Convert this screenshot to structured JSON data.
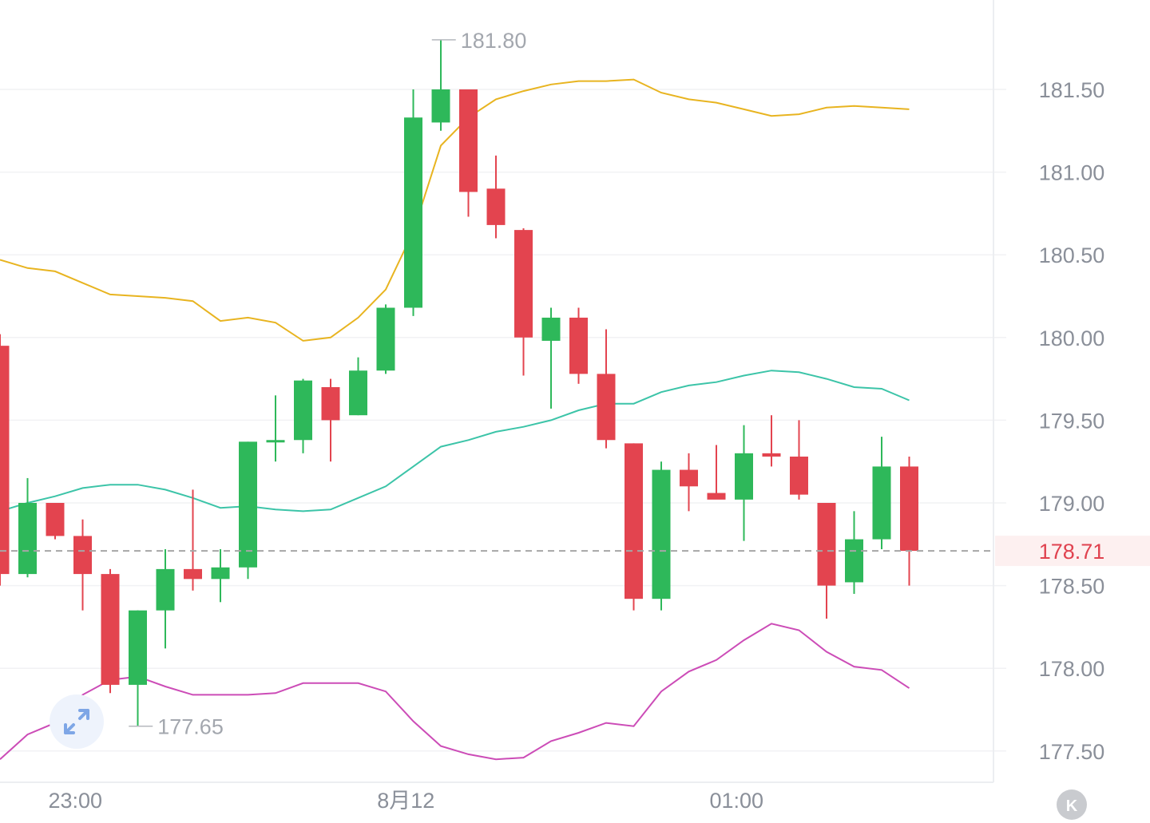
{
  "chart_data": {
    "type": "candlestick",
    "y_axis": {
      "ticks": [
        "181.50",
        "181.00",
        "180.50",
        "180.00",
        "179.50",
        "179.00",
        "178.50",
        "178.00",
        "177.50"
      ],
      "tick_values": [
        181.5,
        181.0,
        180.5,
        180.0,
        179.5,
        179.0,
        178.5,
        178.0,
        177.5
      ],
      "range": [
        177.3,
        182.05
      ],
      "position": "right"
    },
    "x_axis": {
      "labels": [
        {
          "text": "23:00",
          "index": 2.5
        },
        {
          "text": "8月12",
          "index": 14.5
        },
        {
          "text": "01:00",
          "index": 26.5
        }
      ]
    },
    "grid": true,
    "current_price": {
      "value": 178.71,
      "label": "178.71",
      "line": "dashed"
    },
    "high_annotation": {
      "value": 181.8,
      "label": "181.80",
      "index": 15.5
    },
    "low_annotation": {
      "value": 177.65,
      "label": "177.65",
      "index": 4.5
    },
    "candles": [
      {
        "open": 179.95,
        "high": 180.02,
        "low": 178.5,
        "close": 178.57
      },
      {
        "open": 178.57,
        "high": 179.15,
        "low": 178.55,
        "close": 179.0
      },
      {
        "open": 179.0,
        "high": 179.0,
        "low": 178.78,
        "close": 178.8
      },
      {
        "open": 178.8,
        "high": 178.9,
        "low": 178.35,
        "close": 178.57
      },
      {
        "open": 178.57,
        "high": 178.6,
        "low": 177.85,
        "close": 177.9
      },
      {
        "open": 177.9,
        "high": 178.35,
        "low": 177.65,
        "close": 178.35
      },
      {
        "open": 178.35,
        "high": 178.72,
        "low": 178.12,
        "close": 178.6
      },
      {
        "open": 178.6,
        "high": 179.08,
        "low": 178.47,
        "close": 178.54
      },
      {
        "open": 178.54,
        "high": 178.72,
        "low": 178.4,
        "close": 178.61
      },
      {
        "open": 178.61,
        "high": 179.37,
        "low": 178.54,
        "close": 179.37
      },
      {
        "open": 179.37,
        "high": 179.65,
        "low": 179.25,
        "close": 179.38
      },
      {
        "open": 179.38,
        "high": 179.75,
        "low": 179.3,
        "close": 179.74
      },
      {
        "open": 179.7,
        "high": 179.75,
        "low": 179.25,
        "close": 179.5
      },
      {
        "open": 179.53,
        "high": 179.88,
        "low": 179.53,
        "close": 179.8
      },
      {
        "open": 179.8,
        "high": 180.2,
        "low": 179.78,
        "close": 180.18
      },
      {
        "open": 180.18,
        "high": 181.5,
        "low": 180.13,
        "close": 181.33
      },
      {
        "open": 181.3,
        "high": 181.8,
        "low": 181.25,
        "close": 181.5
      },
      {
        "open": 181.5,
        "high": 181.5,
        "low": 180.73,
        "close": 180.88
      },
      {
        "open": 180.9,
        "high": 181.1,
        "low": 180.6,
        "close": 180.68
      },
      {
        "open": 180.65,
        "high": 180.66,
        "low": 179.77,
        "close": 180.0
      },
      {
        "open": 179.98,
        "high": 180.18,
        "low": 179.57,
        "close": 180.12
      },
      {
        "open": 180.12,
        "high": 180.18,
        "low": 179.72,
        "close": 179.78
      },
      {
        "open": 179.78,
        "high": 180.05,
        "low": 179.33,
        "close": 179.38
      },
      {
        "open": 179.36,
        "high": 179.36,
        "low": 178.35,
        "close": 178.42
      },
      {
        "open": 178.42,
        "high": 179.25,
        "low": 178.35,
        "close": 179.2
      },
      {
        "open": 179.2,
        "high": 179.3,
        "low": 178.95,
        "close": 179.1
      },
      {
        "open": 179.06,
        "high": 179.35,
        "low": 179.05,
        "close": 179.02
      },
      {
        "open": 179.02,
        "high": 179.47,
        "low": 178.77,
        "close": 179.3
      },
      {
        "open": 179.3,
        "high": 179.53,
        "low": 179.22,
        "close": 179.28
      },
      {
        "open": 179.28,
        "high": 179.5,
        "low": 179.02,
        "close": 179.05
      },
      {
        "open": 179.0,
        "high": 179.0,
        "low": 178.3,
        "close": 178.5
      },
      {
        "open": 178.52,
        "high": 178.95,
        "low": 178.45,
        "close": 178.78
      },
      {
        "open": 178.78,
        "high": 179.4,
        "low": 178.72,
        "close": 179.22
      },
      {
        "open": 179.22,
        "high": 179.28,
        "low": 178.5,
        "close": 178.71
      }
    ],
    "bands": {
      "upper": [
        180.47,
        180.42,
        180.4,
        180.33,
        180.26,
        180.25,
        180.24,
        180.22,
        180.1,
        180.12,
        180.09,
        179.98,
        180.0,
        180.12,
        180.29,
        180.64,
        181.16,
        181.33,
        181.44,
        181.49,
        181.53,
        181.55,
        181.55,
        181.56,
        181.48,
        181.44,
        181.42,
        181.38,
        181.34,
        181.35,
        181.39,
        181.4,
        181.39,
        181.38
      ],
      "middle": [
        178.95,
        179.0,
        179.04,
        179.09,
        179.11,
        179.11,
        179.08,
        179.03,
        178.97,
        178.98,
        178.96,
        178.95,
        178.96,
        179.03,
        179.1,
        179.22,
        179.34,
        179.38,
        179.43,
        179.46,
        179.5,
        179.56,
        179.6,
        179.6,
        179.67,
        179.71,
        179.73,
        179.77,
        179.8,
        179.79,
        179.75,
        179.7,
        179.69,
        179.62
      ],
      "lower": [
        177.45,
        177.6,
        177.67,
        177.84,
        177.93,
        177.95,
        177.89,
        177.84,
        177.84,
        177.84,
        177.85,
        177.91,
        177.91,
        177.91,
        177.86,
        177.68,
        177.53,
        177.48,
        177.45,
        177.46,
        177.56,
        177.61,
        177.67,
        177.65,
        177.86,
        177.98,
        178.05,
        178.17,
        178.27,
        178.23,
        178.1,
        178.01,
        177.99,
        177.88
      ]
    },
    "colors": {
      "up": "#2eb85a",
      "down": "#e3444f",
      "upper_band": "#e8b420",
      "middle_band": "#3cc4a8",
      "lower_band": "#cc4cb7",
      "current_line": "#a6a6a6",
      "current_label": "#e0424f",
      "grid": "#f1f2f4"
    }
  },
  "ui": {
    "expand_icon": "expand-arrows-icon",
    "corner_button_label": "K",
    "corner_button_icon": "k-logo-icon"
  }
}
